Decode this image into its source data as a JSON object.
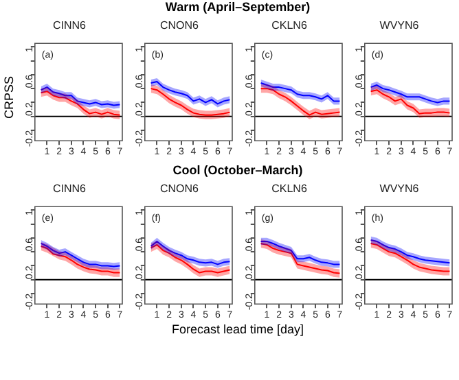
{
  "chart_data": [
    {
      "type": "line",
      "title": "CINN6",
      "annotations": [
        "(a)"
      ],
      "x": [
        0.5,
        1,
        1.5,
        2,
        2.5,
        3,
        3.5,
        4,
        4.5,
        5,
        5.5,
        6,
        6.5,
        7
      ],
      "xlim": [
        0,
        7.2
      ],
      "xticks": [
        1,
        2,
        3,
        4,
        5,
        6,
        7
      ],
      "ylim": [
        -0.35,
        1.05
      ],
      "yticks": [
        -0.2,
        {
          "value": 0,
          "label": null
        },
        0.2,
        {
          "value": 0.4,
          "label": null
        },
        0.6,
        {
          "value": 0.8,
          "label": null
        },
        1.0
      ],
      "ref_lines": [
        {
          "axis": "y",
          "value": 0,
          "color": "#000000"
        }
      ],
      "series": [
        {
          "color": "#0000ff",
          "values": [
            0.38,
            0.42,
            0.35,
            0.33,
            0.3,
            0.3,
            0.22,
            0.2,
            0.18,
            0.2,
            0.17,
            0.18,
            0.16,
            0.17
          ],
          "lower": [
            0.33,
            0.37,
            0.3,
            0.28,
            0.25,
            0.25,
            0.17,
            0.15,
            0.13,
            0.15,
            0.12,
            0.13,
            0.11,
            0.12
          ],
          "upper": [
            0.43,
            0.47,
            0.4,
            0.38,
            0.35,
            0.35,
            0.27,
            0.25,
            0.23,
            0.25,
            0.22,
            0.23,
            0.21,
            0.22
          ]
        },
        {
          "color": "#ff0000",
          "values": [
            0.34,
            0.36,
            0.3,
            0.27,
            0.27,
            0.22,
            0.18,
            0.1,
            0.04,
            0.06,
            0.03,
            0.06,
            0.03,
            0.02
          ],
          "lower": [
            0.28,
            0.3,
            0.24,
            0.21,
            0.21,
            0.16,
            0.12,
            0.04,
            -0.02,
            0,
            -0.03,
            0,
            -0.03,
            -0.04
          ],
          "upper": [
            0.4,
            0.42,
            0.36,
            0.33,
            0.33,
            0.28,
            0.24,
            0.16,
            0.1,
            0.12,
            0.09,
            0.12,
            0.09,
            0.08
          ]
        }
      ]
    },
    {
      "type": "line",
      "title": "CNON6",
      "subtitle": "Warm (April–September)",
      "annotations": [
        "(b)"
      ],
      "x": [
        0.5,
        1,
        1.5,
        2,
        2.5,
        3,
        3.5,
        4,
        4.5,
        5,
        5.5,
        6,
        6.5,
        7
      ],
      "xlim": [
        0,
        7.2
      ],
      "xticks": [
        1,
        2,
        3,
        4,
        5,
        6,
        7
      ],
      "ylim": [
        -0.35,
        1.05
      ],
      "yticks": [
        -0.2,
        {
          "value": 0,
          "label": null
        },
        0.2,
        {
          "value": 0.4,
          "label": null
        },
        0.6,
        {
          "value": 0.8,
          "label": null
        },
        1.0
      ],
      "ref_lines": [
        {
          "axis": "y",
          "value": 0,
          "color": "#000000"
        }
      ],
      "series": [
        {
          "color": "#0000ff",
          "values": [
            0.48,
            0.5,
            0.42,
            0.38,
            0.35,
            0.33,
            0.3,
            0.22,
            0.25,
            0.2,
            0.24,
            0.18,
            0.22,
            0.24
          ],
          "lower": [
            0.43,
            0.45,
            0.37,
            0.33,
            0.3,
            0.28,
            0.25,
            0.17,
            0.2,
            0.15,
            0.19,
            0.13,
            0.17,
            0.19
          ],
          "upper": [
            0.53,
            0.55,
            0.47,
            0.43,
            0.4,
            0.38,
            0.35,
            0.27,
            0.3,
            0.25,
            0.29,
            0.23,
            0.27,
            0.29
          ]
        },
        {
          "color": "#ff0000",
          "values": [
            0.4,
            0.38,
            0.32,
            0.25,
            0.2,
            0.16,
            0.1,
            0.05,
            0.03,
            0.02,
            0.02,
            0.03,
            0.04,
            0.06
          ],
          "lower": [
            0.34,
            0.32,
            0.26,
            0.19,
            0.14,
            0.1,
            0.04,
            -0.01,
            -0.03,
            -0.04,
            -0.04,
            -0.03,
            -0.02,
            0
          ],
          "upper": [
            0.46,
            0.44,
            0.38,
            0.31,
            0.26,
            0.22,
            0.16,
            0.11,
            0.09,
            0.08,
            0.08,
            0.09,
            0.1,
            0.12
          ]
        }
      ]
    },
    {
      "type": "line",
      "title": "CKLN6",
      "annotations": [
        "(c)"
      ],
      "x": [
        0.5,
        1,
        1.5,
        2,
        2.5,
        3,
        3.5,
        4,
        4.5,
        5,
        5.5,
        6,
        6.5,
        7
      ],
      "xlim": [
        0,
        7.2
      ],
      "xticks": [
        1,
        2,
        3,
        4,
        5,
        6,
        7
      ],
      "ylim": [
        -0.35,
        1.05
      ],
      "yticks": [
        -0.2,
        {
          "value": 0,
          "label": null
        },
        0.2,
        {
          "value": 0.4,
          "label": null
        },
        0.6,
        {
          "value": 0.8,
          "label": null
        },
        1.0
      ],
      "ref_lines": [
        {
          "axis": "y",
          "value": 0,
          "color": "#000000"
        }
      ],
      "series": [
        {
          "color": "#0000ff",
          "values": [
            0.48,
            0.45,
            0.42,
            0.42,
            0.4,
            0.38,
            0.32,
            0.3,
            0.3,
            0.28,
            0.25,
            0.3,
            0.22,
            0.22
          ],
          "lower": [
            0.43,
            0.4,
            0.37,
            0.37,
            0.35,
            0.33,
            0.27,
            0.25,
            0.25,
            0.23,
            0.2,
            0.25,
            0.17,
            0.17
          ],
          "upper": [
            0.53,
            0.5,
            0.47,
            0.47,
            0.45,
            0.43,
            0.37,
            0.35,
            0.35,
            0.33,
            0.3,
            0.35,
            0.27,
            0.27
          ]
        },
        {
          "color": "#ff0000",
          "values": [
            0.4,
            0.4,
            0.38,
            0.32,
            0.28,
            0.22,
            0.15,
            0.08,
            0.02,
            0.06,
            0.03,
            0.04,
            0.05,
            0.06
          ],
          "lower": [
            0.34,
            0.34,
            0.32,
            0.26,
            0.22,
            0.16,
            0.09,
            0.02,
            -0.04,
            0,
            -0.03,
            -0.02,
            -0.01,
            0
          ],
          "upper": [
            0.46,
            0.46,
            0.44,
            0.38,
            0.34,
            0.28,
            0.21,
            0.14,
            0.08,
            0.12,
            0.09,
            0.1,
            0.11,
            0.12
          ]
        }
      ]
    },
    {
      "type": "line",
      "title": "WVYN6",
      "annotations": [
        "(d)"
      ],
      "x": [
        0.5,
        1,
        1.5,
        2,
        2.5,
        3,
        3.5,
        4,
        4.5,
        5,
        5.5,
        6,
        6.5,
        7
      ],
      "xlim": [
        0,
        7.2
      ],
      "xticks": [
        1,
        2,
        3,
        4,
        5,
        6,
        7
      ],
      "ylim": [
        -0.35,
        1.05
      ],
      "yticks": [
        -0.2,
        {
          "value": 0,
          "label": null
        },
        0.2,
        {
          "value": 0.4,
          "label": null
        },
        0.6,
        {
          "value": 0.8,
          "label": null
        },
        1.0
      ],
      "ref_lines": [
        {
          "axis": "y",
          "value": 0,
          "color": "#000000"
        }
      ],
      "series": [
        {
          "color": "#0000ff",
          "values": [
            0.42,
            0.45,
            0.4,
            0.38,
            0.35,
            0.32,
            0.28,
            0.28,
            0.28,
            0.25,
            0.22,
            0.2,
            0.22,
            0.22
          ],
          "lower": [
            0.37,
            0.4,
            0.35,
            0.33,
            0.3,
            0.27,
            0.23,
            0.23,
            0.23,
            0.2,
            0.17,
            0.15,
            0.17,
            0.17
          ],
          "upper": [
            0.47,
            0.5,
            0.45,
            0.43,
            0.4,
            0.37,
            0.33,
            0.33,
            0.33,
            0.3,
            0.27,
            0.25,
            0.27,
            0.27
          ]
        },
        {
          "color": "#ff0000",
          "values": [
            0.36,
            0.38,
            0.32,
            0.28,
            0.22,
            0.25,
            0.16,
            0.12,
            0.04,
            0.05,
            0.05,
            0.06,
            0.06,
            0.05
          ],
          "lower": [
            0.3,
            0.32,
            0.26,
            0.22,
            0.16,
            0.19,
            0.1,
            0.06,
            -0.02,
            -0.01,
            -0.01,
            0,
            0,
            -0.01
          ],
          "upper": [
            0.42,
            0.44,
            0.38,
            0.34,
            0.28,
            0.31,
            0.22,
            0.18,
            0.1,
            0.11,
            0.11,
            0.12,
            0.12,
            0.11
          ]
        }
      ]
    },
    {
      "type": "line",
      "title": "CINN6",
      "ylabel": "CRPSS",
      "annotations": [
        "(e)"
      ],
      "x": [
        0.5,
        1,
        1.5,
        2,
        2.5,
        3,
        3.5,
        4,
        4.5,
        5,
        5.5,
        6,
        6.5,
        7
      ],
      "xlim": [
        0,
        7.2
      ],
      "xticks": [
        1,
        2,
        3,
        4,
        5,
        6,
        7
      ],
      "ylim": [
        -0.35,
        1.05
      ],
      "yticks": [
        -0.2,
        {
          "value": 0,
          "label": null
        },
        0.2,
        {
          "value": 0.4,
          "label": null
        },
        0.6,
        {
          "value": 0.8,
          "label": null
        },
        1.0
      ],
      "ref_lines": [
        {
          "axis": "y",
          "value": 0,
          "color": "#000000"
        }
      ],
      "series": [
        {
          "color": "#0000ff",
          "values": [
            0.52,
            0.48,
            0.42,
            0.38,
            0.4,
            0.35,
            0.3,
            0.25,
            0.22,
            0.22,
            0.2,
            0.2,
            0.19,
            0.2
          ],
          "lower": [
            0.47,
            0.43,
            0.37,
            0.33,
            0.35,
            0.3,
            0.25,
            0.2,
            0.17,
            0.17,
            0.15,
            0.15,
            0.14,
            0.15
          ],
          "upper": [
            0.57,
            0.53,
            0.47,
            0.43,
            0.45,
            0.4,
            0.35,
            0.3,
            0.27,
            0.27,
            0.25,
            0.25,
            0.24,
            0.25
          ]
        },
        {
          "color": "#ff0000",
          "values": [
            0.48,
            0.45,
            0.37,
            0.35,
            0.33,
            0.28,
            0.22,
            0.18,
            0.15,
            0.14,
            0.12,
            0.12,
            0.1,
            0.1
          ],
          "lower": [
            0.42,
            0.39,
            0.34,
            0.29,
            0.27,
            0.22,
            0.16,
            0.12,
            0.09,
            0.08,
            0.06,
            0.06,
            0.04,
            0.04
          ],
          "upper": [
            0.54,
            0.51,
            0.46,
            0.41,
            0.39,
            0.34,
            0.28,
            0.24,
            0.21,
            0.2,
            0.18,
            0.18,
            0.16,
            0.16
          ]
        }
      ]
    },
    {
      "type": "line",
      "title": "CNON6",
      "subtitle": "Cool (October–March)",
      "xlabel": "Forecast lead time [day]",
      "annotations": [
        "(f)"
      ],
      "x": [
        0.5,
        1,
        1.5,
        2,
        2.5,
        3,
        3.5,
        4,
        4.5,
        5,
        5.5,
        6,
        6.5,
        7
      ],
      "xlim": [
        0,
        7.2
      ],
      "xticks": [
        1,
        2,
        3,
        4,
        5,
        6,
        7
      ],
      "ylim": [
        -0.35,
        1.05
      ],
      "yticks": [
        -0.2,
        {
          "value": 0,
          "label": null
        },
        0.2,
        {
          "value": 0.4,
          "label": null
        },
        0.6,
        {
          "value": 0.8,
          "label": null
        },
        1.0
      ],
      "ref_lines": [
        {
          "axis": "y",
          "value": 0,
          "color": "#000000"
        }
      ],
      "series": [
        {
          "color": "#0000ff",
          "values": [
            0.48,
            0.55,
            0.48,
            0.42,
            0.38,
            0.35,
            0.3,
            0.28,
            0.25,
            0.24,
            0.25,
            0.22,
            0.25,
            0.26
          ],
          "lower": [
            0.43,
            0.5,
            0.43,
            0.37,
            0.33,
            0.3,
            0.25,
            0.23,
            0.2,
            0.19,
            0.2,
            0.17,
            0.2,
            0.21
          ],
          "upper": [
            0.53,
            0.6,
            0.53,
            0.47,
            0.43,
            0.4,
            0.35,
            0.33,
            0.3,
            0.29,
            0.3,
            0.27,
            0.3,
            0.31
          ]
        },
        {
          "color": "#ff0000",
          "values": [
            0.46,
            0.5,
            0.42,
            0.38,
            0.32,
            0.28,
            0.22,
            0.15,
            0.1,
            0.12,
            0.12,
            0.1,
            0.12,
            0.14
          ],
          "lower": [
            0.4,
            0.44,
            0.36,
            0.32,
            0.26,
            0.22,
            0.16,
            0.09,
            0.04,
            0.06,
            0.06,
            0.04,
            0.06,
            0.08
          ],
          "upper": [
            0.52,
            0.56,
            0.48,
            0.44,
            0.38,
            0.34,
            0.28,
            0.21,
            0.16,
            0.18,
            0.18,
            0.16,
            0.18,
            0.2
          ]
        }
      ]
    },
    {
      "type": "line",
      "title": "CKLN6",
      "annotations": [
        "(g)"
      ],
      "x": [
        0.5,
        1,
        1.5,
        2,
        2.5,
        3,
        3.5,
        4,
        4.5,
        5,
        5.5,
        6,
        6.5,
        7
      ],
      "xlim": [
        0,
        7.2
      ],
      "xticks": [
        1,
        2,
        3,
        4,
        5,
        6,
        7
      ],
      "ylim": [
        -0.35,
        1.05
      ],
      "yticks": [
        -0.2,
        {
          "value": 0,
          "label": null
        },
        0.2,
        {
          "value": 0.4,
          "label": null
        },
        0.6,
        {
          "value": 0.8,
          "label": null
        },
        1.0
      ],
      "ref_lines": [
        {
          "axis": "y",
          "value": 0,
          "color": "#000000"
        }
      ],
      "series": [
        {
          "color": "#0000ff",
          "values": [
            0.55,
            0.55,
            0.52,
            0.48,
            0.45,
            0.42,
            0.3,
            0.3,
            0.32,
            0.28,
            0.25,
            0.24,
            0.22,
            0.22
          ],
          "lower": [
            0.5,
            0.5,
            0.47,
            0.43,
            0.4,
            0.37,
            0.25,
            0.25,
            0.27,
            0.23,
            0.2,
            0.19,
            0.17,
            0.17
          ],
          "upper": [
            0.6,
            0.6,
            0.57,
            0.53,
            0.5,
            0.47,
            0.35,
            0.35,
            0.37,
            0.33,
            0.3,
            0.29,
            0.27,
            0.27
          ]
        },
        {
          "color": "#ff0000",
          "values": [
            0.52,
            0.5,
            0.45,
            0.42,
            0.4,
            0.38,
            0.22,
            0.2,
            0.18,
            0.16,
            0.14,
            0.13,
            0.1,
            0.09
          ],
          "lower": [
            0.46,
            0.44,
            0.39,
            0.36,
            0.34,
            0.32,
            0.16,
            0.14,
            0.12,
            0.1,
            0.08,
            0.07,
            0.04,
            0.03
          ],
          "upper": [
            0.58,
            0.56,
            0.51,
            0.48,
            0.46,
            0.44,
            0.28,
            0.26,
            0.24,
            0.22,
            0.2,
            0.19,
            0.16,
            0.15
          ]
        }
      ]
    },
    {
      "type": "line",
      "title": "WVYN6",
      "annotations": [
        "(h)"
      ],
      "x": [
        0.5,
        1,
        1.5,
        2,
        2.5,
        3,
        3.5,
        4,
        4.5,
        5,
        5.5,
        6,
        6.5,
        7
      ],
      "xlim": [
        0,
        7.2
      ],
      "xticks": [
        1,
        2,
        3,
        4,
        5,
        6,
        7
      ],
      "ylim": [
        -0.35,
        1.05
      ],
      "yticks": [
        -0.2,
        {
          "value": 0,
          "label": null
        },
        0.2,
        {
          "value": 0.4,
          "label": null
        },
        0.6,
        {
          "value": 0.8,
          "label": null
        },
        1.0
      ],
      "ref_lines": [
        {
          "axis": "y",
          "value": 0,
          "color": "#000000"
        }
      ],
      "series": [
        {
          "color": "#0000ff",
          "values": [
            0.57,
            0.55,
            0.5,
            0.46,
            0.44,
            0.4,
            0.35,
            0.33,
            0.3,
            0.28,
            0.27,
            0.26,
            0.25,
            0.24
          ],
          "lower": [
            0.52,
            0.5,
            0.45,
            0.41,
            0.39,
            0.35,
            0.3,
            0.28,
            0.25,
            0.23,
            0.22,
            0.21,
            0.2,
            0.19
          ],
          "upper": [
            0.62,
            0.6,
            0.55,
            0.51,
            0.49,
            0.45,
            0.4,
            0.38,
            0.35,
            0.33,
            0.32,
            0.31,
            0.3,
            0.29
          ]
        },
        {
          "color": "#ff0000",
          "values": [
            0.52,
            0.5,
            0.45,
            0.4,
            0.38,
            0.33,
            0.28,
            0.22,
            0.18,
            0.16,
            0.14,
            0.13,
            0.12,
            0.12
          ],
          "lower": [
            0.46,
            0.44,
            0.39,
            0.34,
            0.32,
            0.27,
            0.22,
            0.16,
            0.12,
            0.1,
            0.08,
            0.07,
            0.06,
            0.06
          ],
          "upper": [
            0.58,
            0.56,
            0.51,
            0.46,
            0.44,
            0.39,
            0.34,
            0.28,
            0.24,
            0.22,
            0.2,
            0.19,
            0.18,
            0.18
          ]
        }
      ]
    }
  ]
}
